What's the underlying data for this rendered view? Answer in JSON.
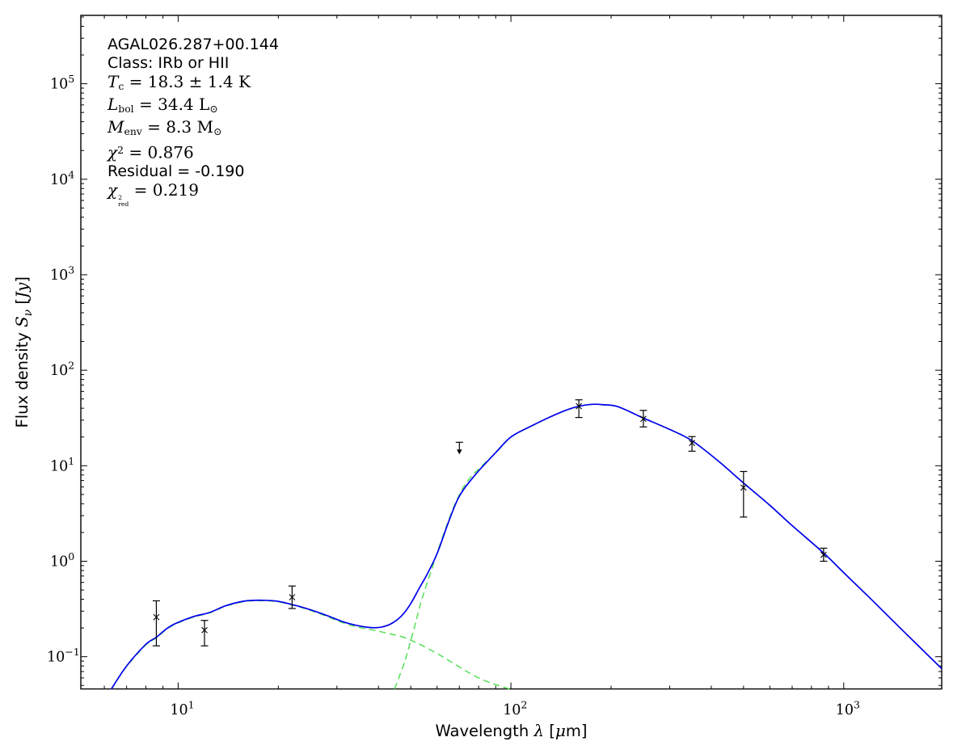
{
  "chart_data": {
    "type": "line",
    "title": "",
    "xlabel_text": "Wavelength λ [μm]",
    "ylabel_text": "Flux density Sν [Jy]",
    "xlabel_segments": [
      {
        "t": "Wavelength ",
        "f": "sans"
      },
      {
        "t": "λ",
        "f": "mathit"
      },
      {
        "t": " [",
        "f": "sans"
      },
      {
        "t": "μ",
        "f": "mathit"
      },
      {
        "t": "m]",
        "f": "sans"
      }
    ],
    "ylabel_segments": [
      {
        "t": "Flux density ",
        "f": "sans"
      },
      {
        "t": "S",
        "f": "mathit"
      },
      {
        "t": "ν",
        "f": "mathsub"
      },
      {
        "t": " [",
        "f": "sans"
      },
      {
        "t": "Jy",
        "f": "mathit"
      },
      {
        "t": "]",
        "f": "sans"
      }
    ],
    "xscale": "log",
    "yscale": "log",
    "xlim": [
      5.1,
      1970
    ],
    "ylim": [
      0.046,
      520000
    ],
    "x_major_ticks": [
      10,
      100,
      1000
    ],
    "y_major_ticks": [
      0.1,
      1,
      10,
      100,
      1000,
      10000,
      100000
    ],
    "grid": false,
    "legend": "none",
    "colors": {
      "model_total": "#0000ee",
      "components": "#55e055",
      "data": "#000000"
    },
    "annotation": {
      "source_name": "AGAL026.287+00.144",
      "class_line": "Class: IRb or HII",
      "tc": {
        "symbol": "T",
        "sub": "c",
        "rest": " = 18.3 ± 1.4 K"
      },
      "lbol": {
        "symbol": "L",
        "sub": "bol",
        "rest": " = 34.4 ",
        "unit": "L",
        "unit_sub": "⊙"
      },
      "menv": {
        "symbol": "M",
        "sub": "env",
        "rest": " = 8.3 ",
        "unit": "M",
        "unit_sub": "⊙"
      },
      "chi2": {
        "symbol": "χ",
        "sup": "2",
        "rest": " = 0.876"
      },
      "residual": "Residual = -0.190",
      "chi2red": {
        "symbol": "χ",
        "sup": "2",
        "sub": "red",
        "rest": " = 0.219"
      }
    },
    "series": [
      {
        "name": "model_total",
        "style": "solid",
        "color": "#0000ee",
        "x": [
          6.3,
          7,
          8,
          8.6,
          9.5,
          11,
          12.4,
          14,
          16,
          18,
          20,
          22.5,
          25,
          28,
          31,
          34,
          38,
          41,
          44,
          47,
          50,
          53,
          56,
          60,
          65,
          70,
          78,
          90,
          100,
          115,
          130,
          146,
          160,
          175,
          190,
          210,
          250,
          300,
          350,
          420,
          500,
          600,
          700,
          870,
          1000,
          1200,
          1500,
          1970
        ],
        "y": [
          0.046,
          0.08,
          0.135,
          0.16,
          0.21,
          0.26,
          0.29,
          0.345,
          0.385,
          0.39,
          0.38,
          0.345,
          0.31,
          0.27,
          0.235,
          0.215,
          0.202,
          0.205,
          0.225,
          0.27,
          0.36,
          0.52,
          0.73,
          1.2,
          2.6,
          4.8,
          8.0,
          13.7,
          20,
          26,
          32,
          38,
          42,
          44,
          43.5,
          41.5,
          31.6,
          24,
          18.3,
          11.2,
          6.6,
          3.85,
          2.36,
          1.22,
          0.76,
          0.41,
          0.19,
          0.075
        ]
      },
      {
        "name": "warm_component",
        "style": "dashed",
        "color": "#55e055",
        "x": [
          6.3,
          7,
          8,
          8.6,
          9.5,
          11,
          12.4,
          14,
          16,
          18,
          20,
          22.5,
          25,
          28,
          31,
          34,
          38,
          42,
          49,
          60,
          80,
          100
        ],
        "y": [
          0.046,
          0.079,
          0.133,
          0.158,
          0.207,
          0.257,
          0.287,
          0.341,
          0.381,
          0.386,
          0.376,
          0.341,
          0.305,
          0.264,
          0.229,
          0.208,
          0.192,
          0.178,
          0.154,
          0.108,
          0.06,
          0.0455
        ]
      },
      {
        "name": "cold_component",
        "style": "dashed",
        "color": "#55e055",
        "x": [
          44.7,
          48,
          51,
          54,
          58,
          62,
          68,
          75,
          90,
          100,
          115,
          130,
          146,
          160,
          175,
          190,
          210,
          250,
          300,
          350,
          420,
          500,
          600,
          700,
          870,
          1000,
          1200,
          1500,
          1970
        ],
        "y": [
          0.046,
          0.09,
          0.19,
          0.4,
          0.85,
          1.7,
          4.0,
          7.3,
          13.6,
          19.9,
          25.9,
          31.9,
          37.9,
          41.9,
          43.9,
          43.4,
          41.4,
          31.55,
          23.95,
          18.28,
          11.19,
          6.59,
          3.84,
          2.36,
          1.22,
          0.76,
          0.41,
          0.19,
          0.075
        ]
      }
    ],
    "points": [
      {
        "x": 8.6,
        "y": 0.26,
        "ylo": 0.13,
        "yhi": 0.385
      },
      {
        "x": 12,
        "y": 0.19,
        "ylo": 0.13,
        "yhi": 0.24
      },
      {
        "x": 22,
        "y": 0.42,
        "ylo": 0.32,
        "yhi": 0.55
      },
      {
        "x": 70,
        "y": 17.6,
        "limit": "upper"
      },
      {
        "x": 160,
        "y": 42,
        "ylo": 32,
        "yhi": 49
      },
      {
        "x": 250,
        "y": 31,
        "ylo": 25.5,
        "yhi": 38
      },
      {
        "x": 350,
        "y": 17.3,
        "ylo": 14.2,
        "yhi": 20.2
      },
      {
        "x": 500,
        "y": 5.9,
        "ylo": 2.9,
        "yhi": 8.7
      },
      {
        "x": 870,
        "y": 1.17,
        "ylo": 1.0,
        "yhi": 1.37
      }
    ]
  }
}
